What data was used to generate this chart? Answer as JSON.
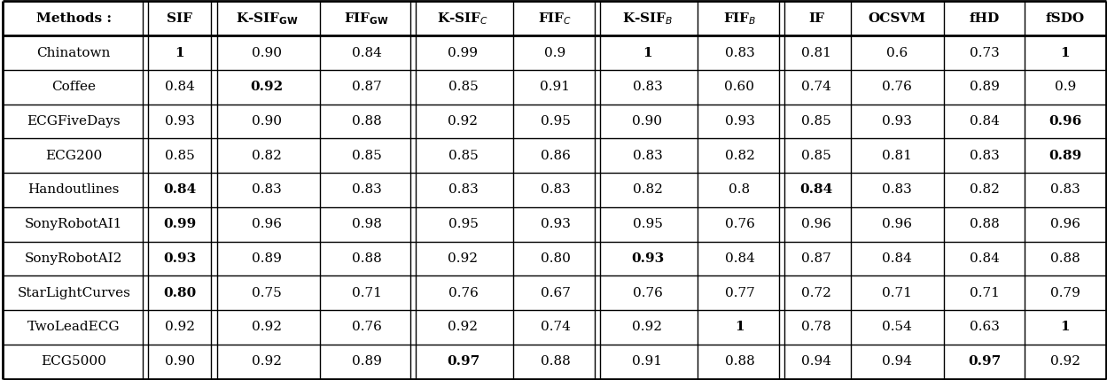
{
  "headers": [
    "Methods :",
    "SIF",
    "K-SIF$_{GW}$",
    "FIF$_{GW}$",
    "K-SIF$_C$",
    "FIF$_C$",
    "K-SIF$_B$",
    "FIF$_B$",
    "IF",
    "OCSVM",
    "fHD",
    "fSDO"
  ],
  "rows": [
    [
      "Chinatown",
      "**1**",
      "0.90",
      "0.84",
      "0.99",
      "0.9",
      "**1**",
      "0.83",
      "0.81",
      "0.6",
      "0.73",
      "**1**"
    ],
    [
      "Coffee",
      "0.84",
      "**0.92**",
      "0.87",
      "0.85",
      "0.91",
      "0.83",
      "0.60",
      "0.74",
      "0.76",
      "0.89",
      "0.9"
    ],
    [
      "ECGFiveDays",
      "0.93",
      "0.90",
      "0.88",
      "0.92",
      "0.95",
      "0.90",
      "0.93",
      "0.85",
      "0.93",
      "0.84",
      "**0.96**"
    ],
    [
      "ECG200",
      "0.85",
      "0.82",
      "0.85",
      "0.85",
      "0.86",
      "0.83",
      "0.82",
      "0.85",
      "0.81",
      "0.83",
      "**0.89**"
    ],
    [
      "Handoutlines",
      "**0.84**",
      "0.83",
      "0.83",
      "0.83",
      "0.83",
      "0.82",
      "0.8",
      "**0.84**",
      "0.83",
      "0.82",
      "0.83"
    ],
    [
      "SonyRobotAI1",
      "**0.99**",
      "0.96",
      "0.98",
      "0.95",
      "0.93",
      "0.95",
      "0.76",
      "0.96",
      "0.96",
      "0.88",
      "0.96"
    ],
    [
      "SonyRobotAI2",
      "**0.93**",
      "0.89",
      "0.88",
      "0.92",
      "0.80",
      "**0.93**",
      "0.84",
      "0.87",
      "0.84",
      "0.84",
      "0.88"
    ],
    [
      "StarLightCurves",
      "**0.80**",
      "0.75",
      "0.71",
      "0.76",
      "0.67",
      "0.76",
      "0.77",
      "0.72",
      "0.71",
      "0.71",
      "0.79"
    ],
    [
      "TwoLeadECG",
      "0.92",
      "0.92",
      "0.76",
      "0.92",
      "0.74",
      "0.92",
      "**1**",
      "0.78",
      "0.54",
      "0.63",
      "**1**"
    ],
    [
      "ECG5000",
      "0.90",
      "0.92",
      "0.89",
      "**0.97**",
      "0.88",
      "0.91",
      "0.88",
      "0.94",
      "0.94",
      "**0.97**",
      "0.92"
    ]
  ],
  "col_groups": [
    {
      "cols": [
        1
      ],
      "double_left": true
    },
    {
      "cols": [
        2,
        3
      ],
      "double_left": true
    },
    {
      "cols": [
        4,
        5
      ],
      "double_left": true
    },
    {
      "cols": [
        6,
        7
      ],
      "double_left": true
    },
    {
      "cols": [
        8,
        9,
        10,
        11
      ],
      "double_left": true
    }
  ],
  "background_color": "#ffffff",
  "header_bg": "#ffffff",
  "row_bg_even": "#ffffff",
  "row_bg_odd": "#ffffff",
  "border_color": "#000000",
  "text_color": "#000000",
  "font_size": 11
}
